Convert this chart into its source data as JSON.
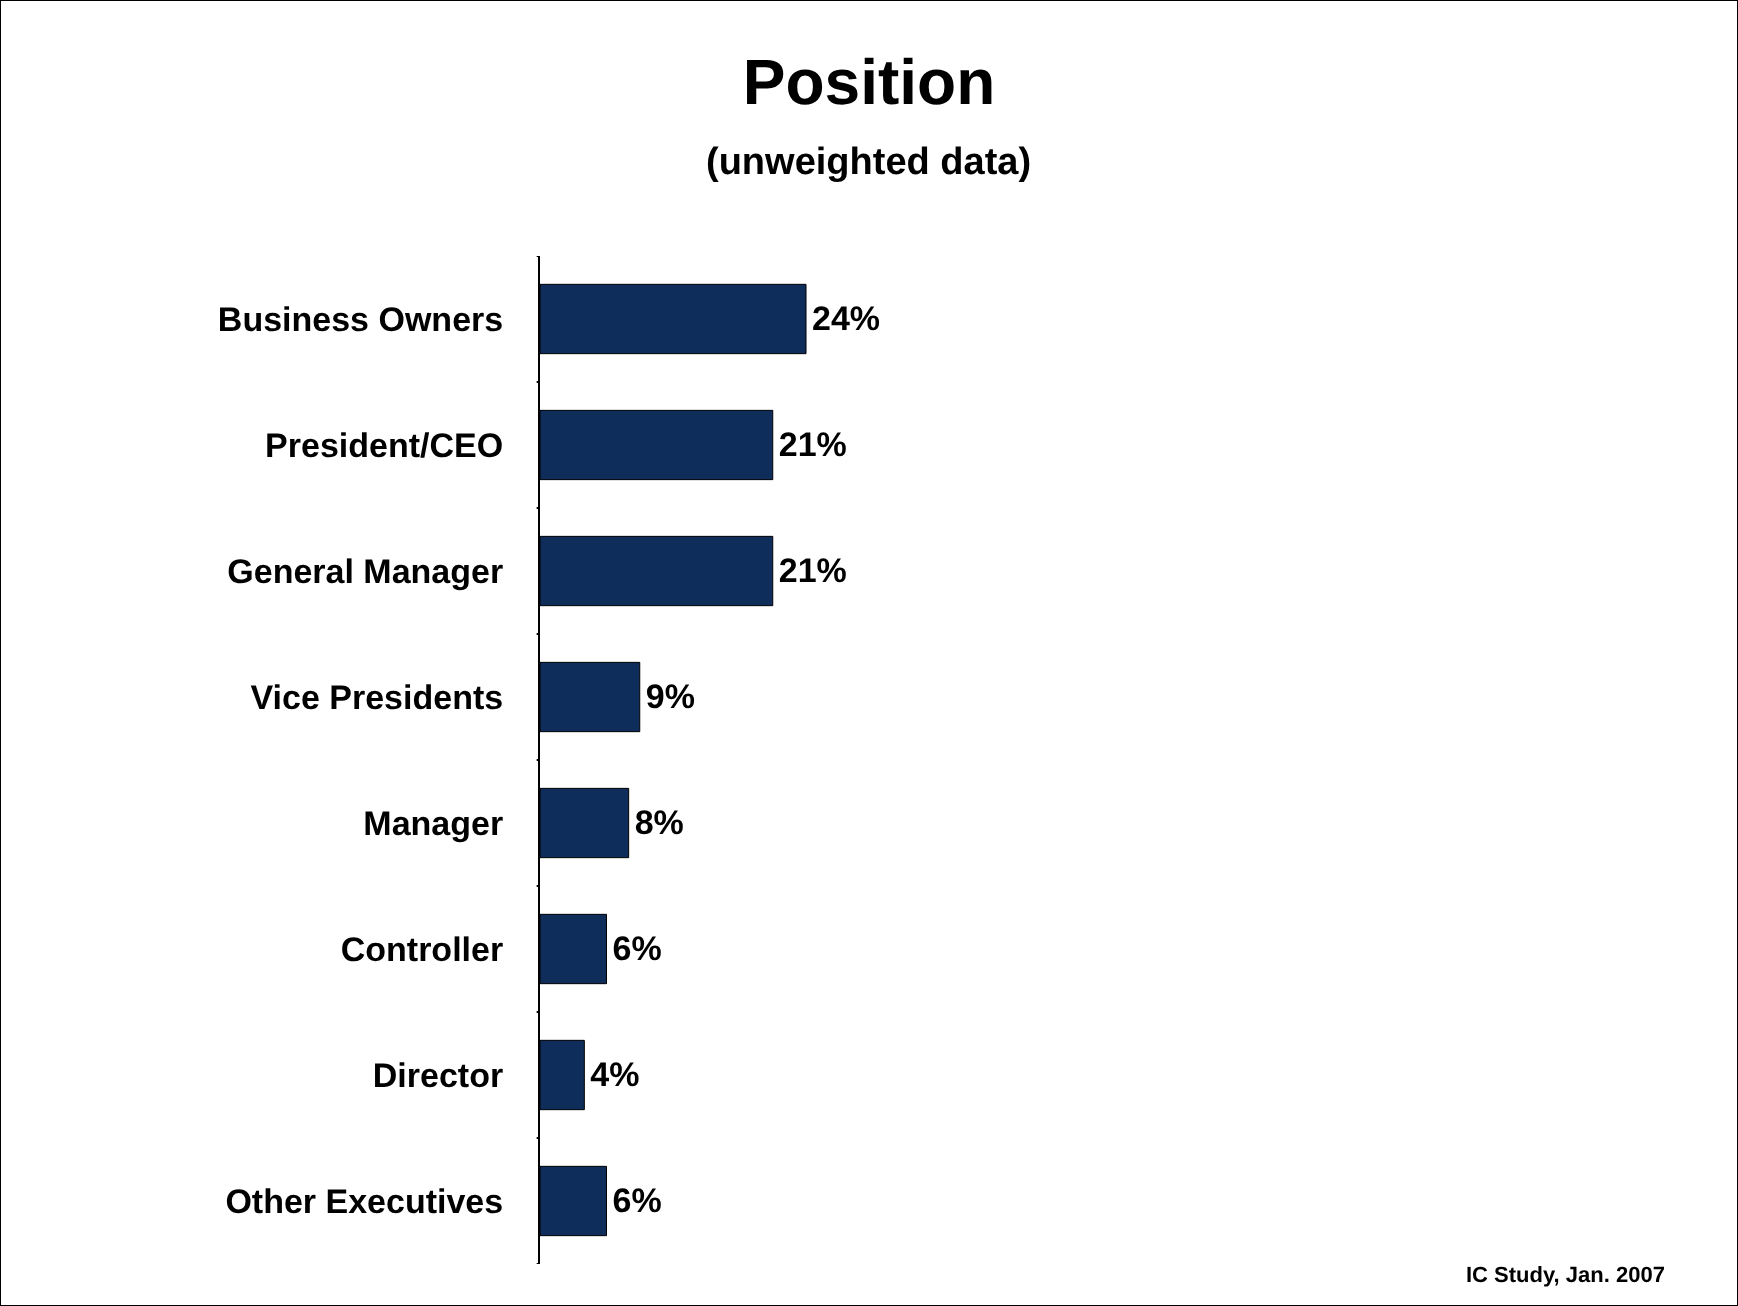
{
  "chart_data": {
    "type": "bar",
    "orientation": "horizontal",
    "title": "Position",
    "subtitle": "(unweighted data)",
    "categories": [
      "Business Owners",
      "President/CEO",
      "General Manager",
      "Vice Presidents",
      "Manager",
      "Controller",
      "Director",
      "Other Executives"
    ],
    "values": [
      24,
      21,
      21,
      9,
      8,
      6,
      4,
      6
    ],
    "value_labels": [
      "24%",
      "21%",
      "21%",
      "9%",
      "8%",
      "6%",
      "4%",
      "6%"
    ],
    "color": "#0f2d5a",
    "legend": false,
    "annotations": [
      "IC Study, Jan. 2007"
    ]
  }
}
